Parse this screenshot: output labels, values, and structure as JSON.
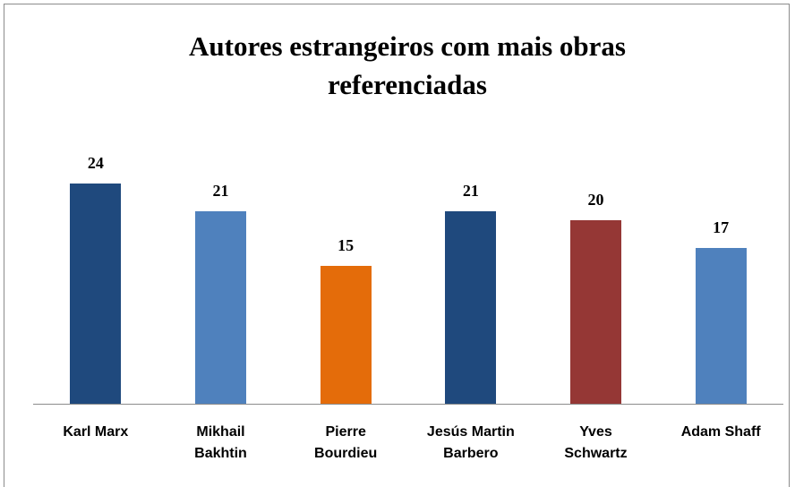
{
  "chart_data": {
    "type": "bar",
    "title": "Autores estrangeiros com mais obras referenciadas",
    "categories": [
      "Karl Marx",
      "Mikhail Bakhtin",
      "Pierre Bourdieu",
      "Jesús Martin Barbero",
      "Yves Schwartz",
      "Adam Shaff"
    ],
    "values": [
      24,
      21,
      15,
      21,
      20,
      17
    ],
    "colors": [
      "#1f497d",
      "#4f81bd",
      "#e46c0a",
      "#1f497d",
      "#953735",
      "#4f81bd"
    ]
  }
}
